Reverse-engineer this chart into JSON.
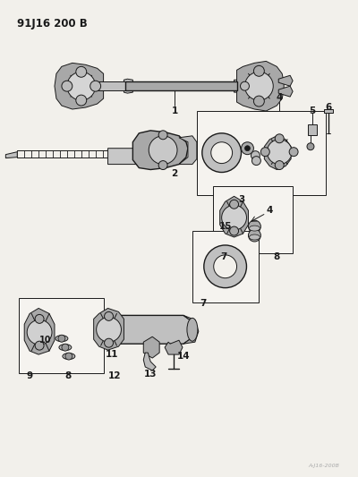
{
  "title": "91J16 200 B",
  "bg_color": "#f2f0eb",
  "line_color": "#1a1a1a",
  "fig_width": 4.0,
  "fig_height": 5.33,
  "dpi": 100,
  "gray_dark": "#5a5a5a",
  "gray_med": "#888888",
  "gray_light": "#bbbbbb",
  "gray_fill": "#a8a8a8",
  "note_color": "#999999"
}
